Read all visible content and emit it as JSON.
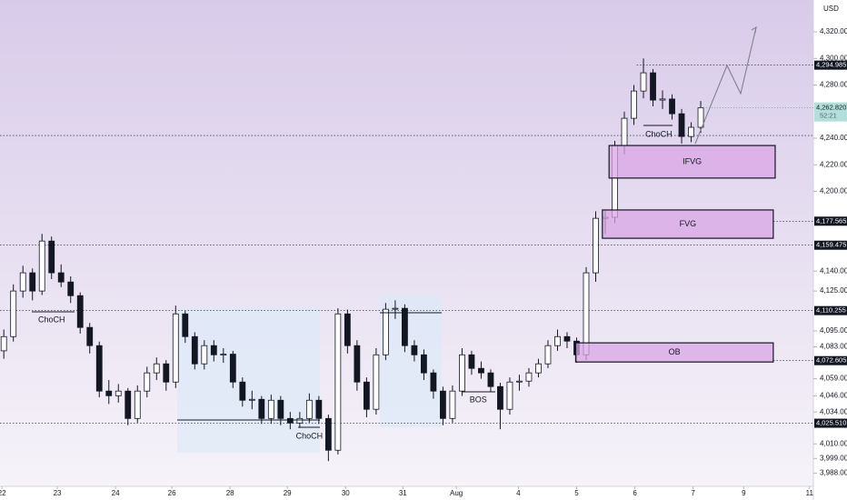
{
  "chart_data": {
    "type": "candlestick",
    "currency": "USD",
    "xlim": [
      -0.4,
      84.8
    ],
    "ylim": [
      3978,
      4344
    ],
    "xticks": [
      {
        "value": -0.2,
        "label": "22"
      },
      {
        "value": 5.6,
        "label": "23"
      },
      {
        "value": 11.7,
        "label": "24"
      },
      {
        "value": 17.6,
        "label": "26"
      },
      {
        "value": 23.7,
        "label": "28"
      },
      {
        "value": 29.7,
        "label": "29"
      },
      {
        "value": 35.8,
        "label": "30"
      },
      {
        "value": 41.8,
        "label": "31"
      },
      {
        "value": 47.4,
        "label": "Aug"
      },
      {
        "value": 53.9,
        "label": "4"
      },
      {
        "value": 60,
        "label": "5"
      },
      {
        "value": 66.1,
        "label": "6"
      },
      {
        "value": 72.2,
        "label": "7"
      },
      {
        "value": 77.5,
        "label": "9"
      },
      {
        "value": 84.4,
        "label": "11"
      }
    ],
    "yticks": [
      {
        "value": 4320,
        "label": "4,320.000"
      },
      {
        "value": 4300,
        "label": "4,300.000"
      },
      {
        "value": 4280,
        "label": "4,280.000"
      },
      {
        "value": 4240,
        "label": "4,240.000"
      },
      {
        "value": 4220,
        "label": "4,220.000"
      },
      {
        "value": 4200,
        "label": "4,200.000"
      },
      {
        "value": 4140,
        "label": "4,140.000"
      },
      {
        "value": 4125,
        "label": "4,125.000"
      },
      {
        "value": 4095,
        "label": "4,095.000"
      },
      {
        "value": 4083,
        "label": "4,083.000"
      },
      {
        "value": 4059,
        "label": "4,059.000"
      },
      {
        "value": 4046,
        "label": "4,046.000"
      },
      {
        "value": 4034,
        "label": "4,034.000"
      },
      {
        "value": 4010,
        "label": "4,010.000"
      },
      {
        "value": 3999,
        "label": "3,999.000"
      },
      {
        "value": 3988,
        "label": "3,988.000"
      }
    ],
    "up_color": "#ffffff",
    "down_color": "#131722",
    "candles": [
      [
        4080,
        4096,
        4074,
        4090.7
      ],
      [
        4090.7,
        4130,
        4087,
        4125
      ],
      [
        4125,
        4144,
        4120,
        4138.7
      ],
      [
        4138.7,
        4142,
        4118,
        4125
      ],
      [
        4125,
        4168,
        4122,
        4162.6
      ],
      [
        4162.6,
        4166,
        4134,
        4138.7
      ],
      [
        4138.7,
        4145,
        4128,
        4131.8
      ],
      [
        4131.8,
        4136,
        4116,
        4121.5
      ],
      [
        4121.5,
        4124,
        4093,
        4097.6
      ],
      [
        4097.6,
        4101,
        4078,
        4083.9
      ],
      [
        4083.9,
        4087,
        4045,
        4049.7
      ],
      [
        4049.7,
        4058,
        4040,
        4046.2
      ],
      [
        4046.2,
        4055,
        4041,
        4049.7
      ],
      [
        4049.7,
        4052,
        4024,
        4029.1
      ],
      [
        4029.1,
        4054,
        4026,
        4049.7
      ],
      [
        4049.7,
        4068,
        4045,
        4063.4
      ],
      [
        4063.4,
        4075,
        4058,
        4070.2
      ],
      [
        4070.2,
        4073,
        4050,
        4056.5
      ],
      [
        4056.5,
        4114,
        4052,
        4107.8
      ],
      [
        4107.8,
        4110,
        4086,
        4090.7
      ],
      [
        4090.7,
        4094,
        4066,
        4070.2
      ],
      [
        4070.2,
        4088,
        4066,
        4083.9
      ],
      [
        4083.9,
        4088,
        4072,
        4077
      ],
      [
        4077,
        4082,
        4071,
        4077.5
      ],
      [
        4077.5,
        4080,
        4052,
        4056.5
      ],
      [
        4056.5,
        4060,
        4038,
        4042.8
      ],
      [
        4042.8,
        4050,
        4036,
        4043.5
      ],
      [
        4043.5,
        4046,
        4025,
        4029.1
      ],
      [
        4029.1,
        4047,
        4025,
        4042.8
      ],
      [
        4042.8,
        4046,
        4024,
        4029.1
      ],
      [
        4029.1,
        4034,
        4021,
        4025.7
      ],
      [
        4025.7,
        4034,
        4022,
        4029.1
      ],
      [
        4029.1,
        4048,
        4026,
        4042.8
      ],
      [
        4042.8,
        4046,
        4025,
        4029.1
      ],
      [
        4029.1,
        4032,
        3997,
        4005.2
      ],
      [
        4005.2,
        4112,
        4002,
        4107.8
      ],
      [
        4107.8,
        4111,
        4078,
        4083.9
      ],
      [
        4083.9,
        4088,
        4050,
        4056.5
      ],
      [
        4056.5,
        4060,
        4030,
        4036
      ],
      [
        4036,
        4082,
        4032,
        4077
      ],
      [
        4077,
        4116,
        4073,
        4111.3
      ],
      [
        4111.3,
        4118,
        4104,
        4112
      ],
      [
        4112,
        4115,
        4079,
        4083.9
      ],
      [
        4083.9,
        4088,
        4072,
        4077
      ],
      [
        4077,
        4081,
        4058,
        4063.4
      ],
      [
        4063.4,
        4066,
        4044,
        4049.7
      ],
      [
        4049.7,
        4053,
        4024,
        4029.1
      ],
      [
        4029.1,
        4054,
        4026,
        4049.7
      ],
      [
        4049.7,
        4082,
        4046,
        4077
      ],
      [
        4077,
        4080,
        4062,
        4066.8
      ],
      [
        4066.8,
        4072,
        4059,
        4063.4
      ],
      [
        4063.4,
        4066,
        4049,
        4053.1
      ],
      [
        4053.1,
        4056,
        4021,
        4036
      ],
      [
        4036,
        4060,
        4032,
        4056.5
      ],
      [
        4056.5,
        4062,
        4050,
        4057.2
      ],
      [
        4057.2,
        4067,
        4053,
        4063.4
      ],
      [
        4063.4,
        4074,
        4060,
        4070.2
      ],
      [
        4070.2,
        4088,
        4067,
        4083.9
      ],
      [
        4083.9,
        4096,
        4080,
        4090.7
      ],
      [
        4090.7,
        4094,
        4082,
        4087.3
      ],
      [
        4087.3,
        4090,
        4071,
        4077
      ],
      [
        4077,
        4143,
        4073,
        4138.7
      ],
      [
        4138.7,
        4185,
        4132,
        4179.7
      ],
      [
        4179.7,
        4186,
        4168,
        4180.5
      ],
      [
        4180.5,
        4238,
        4176,
        4234.5
      ],
      [
        4234.5,
        4260,
        4228,
        4255
      ],
      [
        4255,
        4280,
        4250,
        4275.5
      ],
      [
        4275.5,
        4300,
        4270,
        4289.2
      ],
      [
        4289.2,
        4292,
        4264,
        4268.7
      ],
      [
        4268.7,
        4276,
        4262,
        4269.5
      ],
      [
        4269.5,
        4273,
        4254,
        4258.4
      ],
      [
        4258.4,
        4262,
        4236,
        4241.3
      ],
      [
        4241.3,
        4252,
        4237,
        4248.2
      ],
      [
        4248.2,
        4268,
        4244,
        4262.82
      ]
    ],
    "zones": [
      {
        "label": "IFVG",
        "x": [
          63.4,
          80.8
        ],
        "y": [
          4210,
          4234.5
        ]
      },
      {
        "label": "FVG",
        "x": [
          62.7,
          80.6
        ],
        "y": [
          4164.7,
          4186
        ]
      },
      {
        "label": "OB",
        "x": [
          59.9,
          80.6
        ],
        "y": [
          4071.6,
          4086
        ]
      }
    ],
    "annotations": [
      {
        "text": "ChoCH",
        "x": 5,
        "y": 4103.2
      },
      {
        "text": "ChoCH",
        "x": 32,
        "y": 4015.6
      },
      {
        "text": "ChoCH",
        "x": 68.6,
        "y": 4242.8
      },
      {
        "text": "BOS",
        "x": 49.7,
        "y": 4043
      }
    ],
    "levels": [
      {
        "value": 4294.985,
        "label": "4,294.985",
        "start": 66.3
      },
      {
        "value": 4177.565,
        "label": "4,177.565",
        "start": 80.6
      },
      {
        "value": 4159.475,
        "label": "4,159.475",
        "start": -0.4
      },
      {
        "value": 4110.255,
        "label": "4,110.255",
        "start": -0.4
      },
      {
        "value": 4072.605,
        "label": "4,072.605",
        "start": 80.6
      },
      {
        "value": 4025.51,
        "label": "4,025.510",
        "start": -0.4
      },
      {
        "value": 4242,
        "start": -0.4
      }
    ],
    "last_price": {
      "value": 4262.82,
      "label": "4,262.820",
      "countdown": "52:21"
    }
  }
}
